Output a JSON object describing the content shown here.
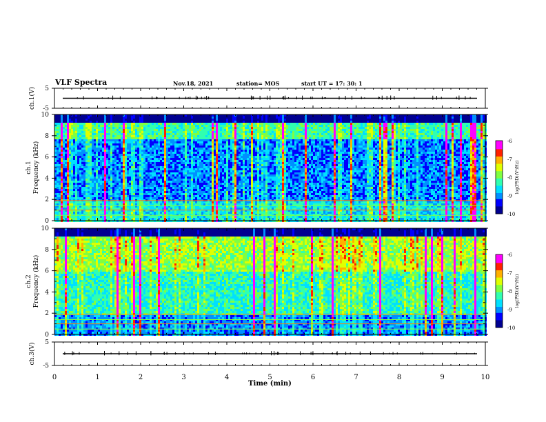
{
  "header": {
    "title": "VLF Spectra",
    "date": "Nov.18, 2021",
    "station": "station= MOS",
    "start": "start  UT =   17: 30: 1"
  },
  "chart_data": [
    {
      "type": "line",
      "ylabel": "ch.1(V)",
      "ylim": [
        -5,
        5
      ],
      "yticks": [
        "5",
        "-5"
      ],
      "xlim": [
        0,
        10
      ],
      "series": [
        {
          "values_constant": 0
        }
      ]
    },
    {
      "type": "heatmap",
      "ylabel": "ch.1\nFrequency (kHz)",
      "ylim": [
        0,
        10
      ],
      "yticks": [
        "0",
        "2",
        "4",
        "6",
        "8",
        "10"
      ],
      "xlim": [
        0,
        10
      ],
      "colorbar": {
        "label": "log(PSD)(V²/Hz)",
        "range": [
          -10,
          -6
        ],
        "ticks": [
          "-6",
          "-7",
          "-8",
          "-9",
          "-10"
        ]
      }
    },
    {
      "type": "heatmap",
      "ylabel": "ch.2\nFrequency (kHz)",
      "ylim": [
        0,
        10
      ],
      "yticks": [
        "0",
        "2",
        "4",
        "6",
        "8",
        "10"
      ],
      "xlim": [
        0,
        10
      ],
      "colorbar": {
        "label": "log(PSD)(V²/Hz)",
        "range": [
          -10,
          -6
        ],
        "ticks": [
          "-6",
          "-7",
          "-8",
          "-9",
          "-10"
        ]
      }
    },
    {
      "type": "line",
      "ylabel": "ch.3(V)",
      "ylim": [
        -5,
        5
      ],
      "yticks": [
        "5",
        "-5"
      ],
      "xlim": [
        0,
        10
      ],
      "xlabel": "Time  (min)",
      "xticks": [
        "0",
        "1",
        "2",
        "3",
        "4",
        "5",
        "6",
        "7",
        "8",
        "9",
        "10"
      ],
      "series": [
        {
          "values_constant": 0
        }
      ]
    }
  ],
  "colors": {
    "scale": [
      "#000090",
      "#0000ff",
      "#0090ff",
      "#00e0ff",
      "#30ffb0",
      "#80ff40",
      "#e0ff00",
      "#ffb000",
      "#ff2000",
      "#ff00ff"
    ]
  }
}
